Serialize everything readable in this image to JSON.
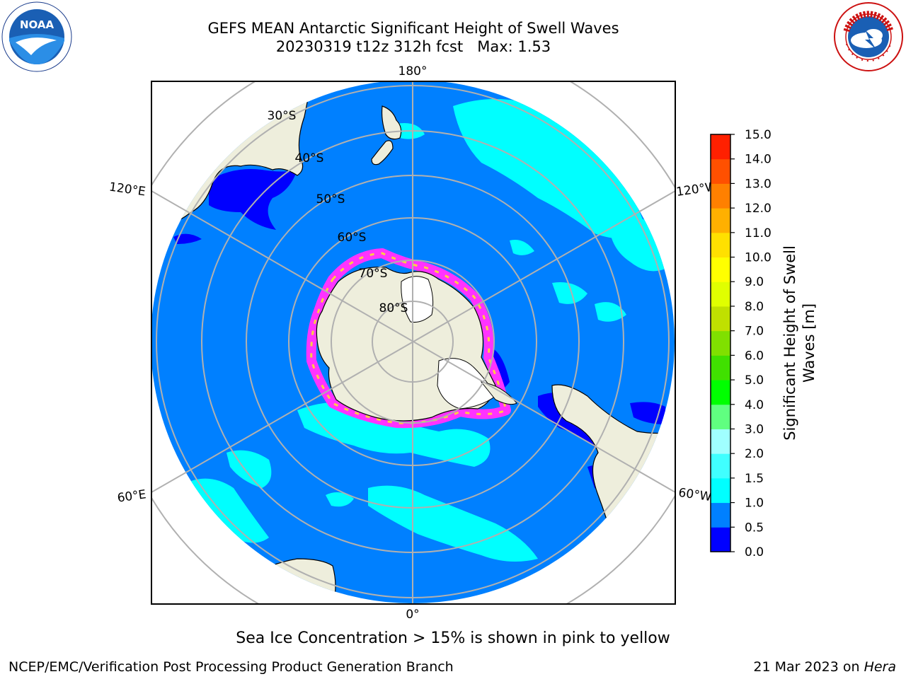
{
  "header": {
    "title_line1": "GEFS MEAN Antarctic Significant Height of Swell Waves",
    "title_line2": "20230319 t12z 312h fcst   Max: 1.53"
  },
  "logos": {
    "noaa_text": "NOAA",
    "noaa_ring_text": "NATIONAL OCEANIC AND ATMOSPHERIC ADMINISTRATION · U.S. DEPARTMENT OF COMMERCE",
    "nws_ring_text": "NATIONAL WEATHER SERVICE"
  },
  "map": {
    "longitude_labels": {
      "top": "180°",
      "bottom": "0°",
      "left_upper": "120°E",
      "left_lower": "60°E",
      "right_upper": "120°W",
      "right_lower": "60°W"
    },
    "latitude_labels": [
      "30°S",
      "40°S",
      "50°S",
      "60°S",
      "70°S",
      "80°S"
    ],
    "colors": {
      "ocean_low": "#0080ff",
      "ocean_1_1_5": "#00ffff",
      "very_low": "#0000ff",
      "land": "#eeeedc",
      "grid": "#b0b0b0",
      "sea_ice": "#ff33ff"
    }
  },
  "colorbar": {
    "label_line1": "Significant Height of Swell",
    "label_line2": "Waves [m]",
    "ticks": [
      "0.0",
      "0.5",
      "1.0",
      "1.5",
      "2.0",
      "3.0",
      "4.0",
      "5.0",
      "6.0",
      "7.0",
      "8.0",
      "9.0",
      "10.0",
      "11.0",
      "12.0",
      "13.0",
      "14.0",
      "15.0"
    ],
    "colors": [
      "#0000ff",
      "#0080ff",
      "#00ffff",
      "#40ffff",
      "#a0ffff",
      "#60ff80",
      "#00ff00",
      "#40e000",
      "#80e000",
      "#c0e000",
      "#e0ff00",
      "#ffff00",
      "#ffe000",
      "#ffb000",
      "#ff8000",
      "#ff5000",
      "#ff2000",
      "#ff0000"
    ]
  },
  "notes": {
    "sea_ice": "Sea Ice Concentration > 15% is shown in pink to yellow"
  },
  "footer": {
    "left": "NCEP/EMC/Verification Post Processing Product Generation Branch",
    "right_prefix": "21 Mar 2023 on ",
    "right_host": "Hera"
  }
}
